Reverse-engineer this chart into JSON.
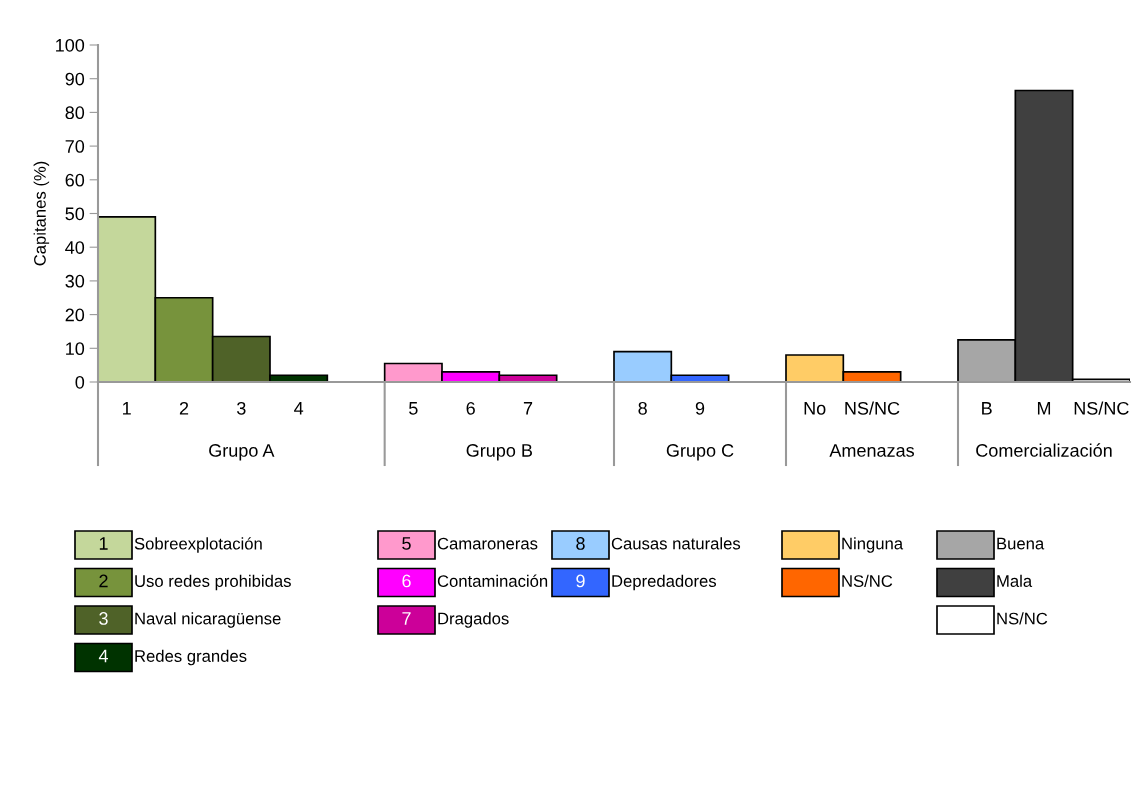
{
  "chart_data": {
    "type": "bar",
    "ylabel": "Capitanes (%)",
    "categories": [
      "1",
      "2",
      "3",
      "4",
      null,
      "5",
      "6",
      "7",
      null,
      "8",
      "9",
      null,
      "No",
      "NS/NC",
      null,
      "B",
      "M",
      "NS/NC"
    ],
    "annotations": [
      "Grupo A",
      "Grupo B",
      "Grupo C",
      "Amenazas",
      "Comercialización"
    ],
    "ylim": [
      0,
      100
    ],
    "yticks": [
      0,
      10,
      20,
      30,
      40,
      50,
      60,
      70,
      80,
      90,
      100
    ],
    "legend": "bottom",
    "series": [
      {
        "name": "Sobreexplotación",
        "color": "#c4d79b",
        "values": [
          49,
          null,
          null,
          null,
          null,
          null,
          null,
          null,
          null,
          null,
          null,
          null,
          null,
          null,
          null,
          null,
          null,
          null
        ]
      },
      {
        "name": "Uso redes prohibidas",
        "color": "#77933c",
        "values": [
          null,
          25,
          null,
          null,
          null,
          null,
          null,
          null,
          null,
          null,
          null,
          null,
          null,
          null,
          null,
          null,
          null,
          null
        ]
      },
      {
        "name": "Naval nicaragüense",
        "color": "#4f6228",
        "values": [
          null,
          null,
          13.5,
          null,
          null,
          null,
          null,
          null,
          null,
          null,
          null,
          null,
          null,
          null,
          null,
          null,
          null,
          null
        ]
      },
      {
        "name": "Redes grandes",
        "color": "#003300",
        "values": [
          null,
          null,
          null,
          2,
          null,
          null,
          null,
          null,
          null,
          null,
          null,
          null,
          null,
          null,
          null,
          null,
          null,
          null
        ]
      },
      {
        "name": "Camaroneras",
        "color": "#ff99cc",
        "values": [
          null,
          null,
          null,
          null,
          null,
          5.5,
          null,
          null,
          null,
          null,
          null,
          null,
          null,
          null,
          null,
          null,
          null,
          null
        ]
      },
      {
        "name": "Contaminación",
        "color": "#ff00ff",
        "values": [
          null,
          null,
          null,
          null,
          null,
          null,
          3,
          null,
          null,
          null,
          null,
          null,
          null,
          null,
          null,
          null,
          null,
          null
        ]
      },
      {
        "name": "Dragados",
        "color": "#cc0099",
        "values": [
          null,
          null,
          null,
          null,
          null,
          null,
          null,
          2,
          null,
          null,
          null,
          null,
          null,
          null,
          null,
          null,
          null,
          null
        ]
      },
      {
        "name": "Causas naturales",
        "color": "#99ccff",
        "values": [
          null,
          null,
          null,
          null,
          null,
          null,
          null,
          null,
          null,
          9,
          null,
          null,
          null,
          null,
          null,
          null,
          null,
          null
        ]
      },
      {
        "name": "Depredadores",
        "color": "#3366ff",
        "values": [
          null,
          null,
          null,
          null,
          null,
          null,
          null,
          null,
          null,
          null,
          2,
          null,
          null,
          null,
          null,
          null,
          null,
          null
        ]
      },
      {
        "name": "Ninguna",
        "color": "#ffcc66",
        "values": [
          null,
          null,
          null,
          null,
          null,
          null,
          null,
          null,
          null,
          null,
          null,
          null,
          8,
          null,
          null,
          null,
          null,
          null
        ]
      },
      {
        "name": "NS/NC",
        "color": "#ff6600",
        "values": [
          null,
          null,
          null,
          null,
          null,
          null,
          null,
          null,
          null,
          null,
          null,
          null,
          null,
          3,
          null,
          null,
          null,
          null
        ]
      },
      {
        "name": "Buena",
        "color": "#a6a6a6",
        "values": [
          null,
          null,
          null,
          null,
          null,
          null,
          null,
          null,
          null,
          null,
          null,
          null,
          null,
          null,
          null,
          12.5,
          null,
          null
        ]
      },
      {
        "name": "Mala",
        "color": "#404040",
        "values": [
          null,
          null,
          null,
          null,
          null,
          null,
          null,
          null,
          null,
          null,
          null,
          null,
          null,
          null,
          null,
          null,
          86.5,
          null
        ]
      },
      {
        "name": "NS/NC",
        "color": "#ffffff",
        "values": [
          null,
          null,
          null,
          null,
          null,
          null,
          null,
          null,
          null,
          null,
          null,
          null,
          null,
          null,
          null,
          null,
          null,
          0.8
        ]
      }
    ]
  }
}
